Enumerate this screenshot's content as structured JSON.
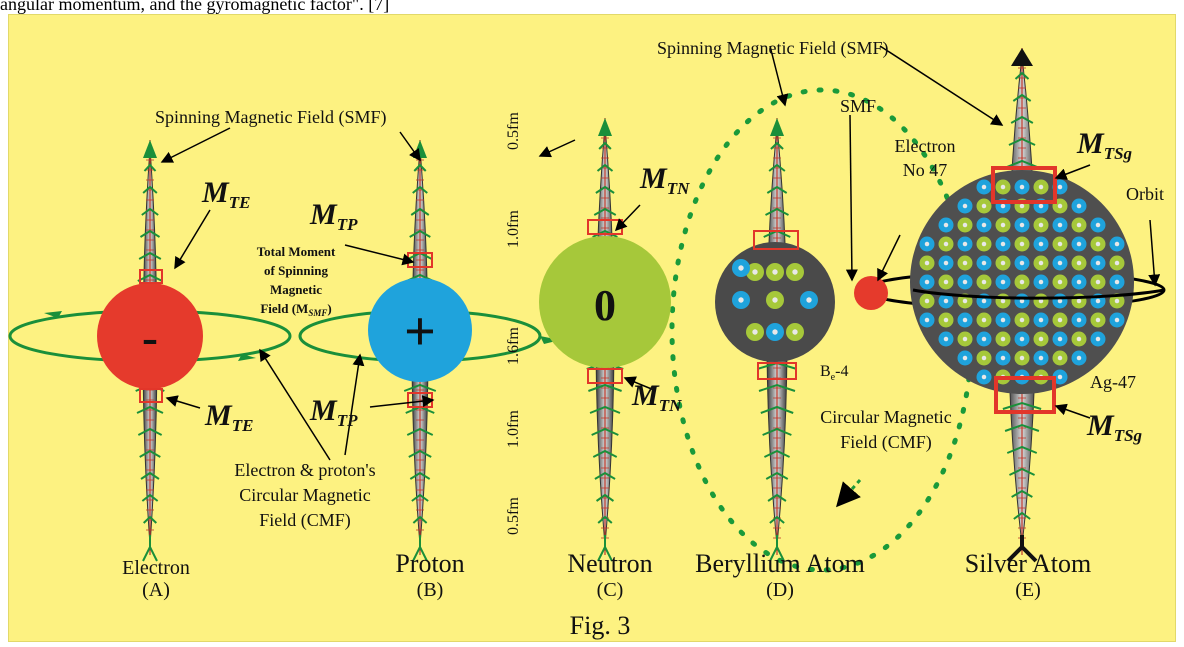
{
  "header_text": "angular momentum, and the gyromagnetic factor\". [7]",
  "colors": {
    "background": "#fdf281",
    "electron": "#e53a2c",
    "proton": "#1fa3dc",
    "neutron": "#a6c83a",
    "field_green": "#1a8f3a",
    "box_red": "#e2362a",
    "dots_green": "#1a9a3a",
    "body_grey": "#555555"
  },
  "labels": {
    "smf_top": "Spinning Magnetic Field (SMF)",
    "smf_left": "Spinning Magnetic Field (SMF)",
    "smf_short": "SMF",
    "total_moment_1": "Total Moment",
    "total_moment_2": "of Spinning",
    "total_moment_3": "Magnetic",
    "total_moment_4": "Field (M",
    "total_moment_sub": "SMF",
    "total_moment_5": ")",
    "cmf_ep_1": "Electron & proton's",
    "cmf_ep_2": "Circular Magnetic",
    "cmf_ep_3": "Field (CMF)",
    "cmf_right_1": "Circular Magnetic",
    "cmf_right_2": "Field (CMF)",
    "electron_no_1": "Electron",
    "electron_no_2": "No 47",
    "orbit": "Orbit",
    "be_label": "B",
    "be_sub": "e",
    "be_suffix": "-4",
    "ag_label": "Ag-47",
    "fig": "Fig. 3"
  },
  "moments": {
    "m": "M",
    "te": "TE",
    "tp": "TP",
    "tn": "TN",
    "tsg": "TSg"
  },
  "symbols": {
    "electron": "-",
    "proton": "+",
    "neutron": "0"
  },
  "dims": {
    "d1": "0.5fm",
    "d2": "1.0fm",
    "d3": "1.6fm",
    "d4": "1.0fm",
    "d5": "0.5fm"
  },
  "particles": [
    {
      "name": "Electron",
      "tag": "(A)"
    },
    {
      "name": "Proton",
      "tag": "(B)"
    },
    {
      "name": "Neutron",
      "tag": "(C)"
    },
    {
      "name": "Beryllium Atom",
      "tag": "(D)"
    },
    {
      "name": "Silver Atom",
      "tag": "(E)"
    }
  ]
}
